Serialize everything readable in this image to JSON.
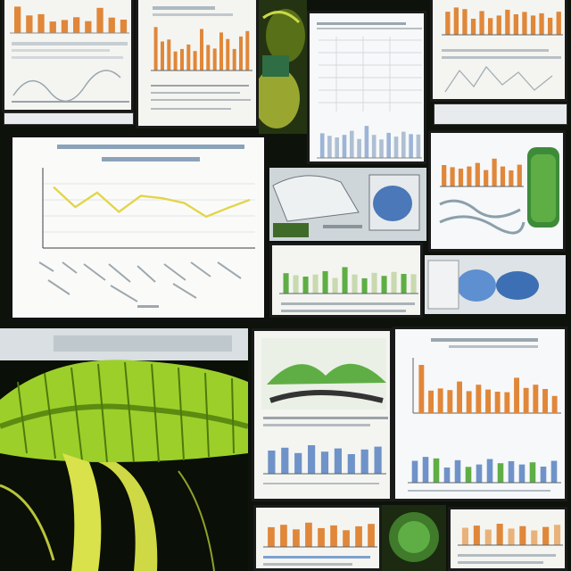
{
  "palette": {
    "background": "#0d120a",
    "paper": "#f4f5f1",
    "orange_bar": "#e0873a",
    "line_yellow": "#e3d54a",
    "leaf_green": "#9ccf2a",
    "stem_yellow": "#d9e24a",
    "grid": "#c9cfd4",
    "blue_bar": "#6f93c9",
    "green_bar": "#5fae45"
  },
  "chart_data": [
    {
      "type": "line",
      "title": "",
      "xlabel": "",
      "ylabel": "",
      "ylim": [
        0,
        10
      ],
      "series": [
        {
          "values": [
            7.6,
            5.1,
            6.9,
            4.5,
            6.5,
            6.2,
            5.6,
            3.9,
            5.0,
            6.0
          ]
        }
      ]
    },
    {
      "type": "bar",
      "title": "",
      "ylim": [
        0,
        10
      ],
      "values": [
        8.7,
        5.8,
        6.2,
        3.8,
        4.3,
        5.2,
        3.9,
        8.3,
        5.1,
        4.4,
        7.6,
        6.3,
        4.3,
        6.8,
        7.9
      ]
    },
    {
      "type": "bar",
      "title": "",
      "ylim": [
        0,
        10
      ],
      "values": [
        6.0,
        5.4,
        5.0,
        5.6,
        6.6,
        4.6,
        7.8,
        5.6,
        4.5,
        6.1,
        5.2,
        6.4,
        5.8,
        5.7
      ]
    },
    {
      "type": "bar",
      "title": "",
      "ylim": [
        0,
        10
      ],
      "values": [
        9.0,
        4.2,
        4.6,
        4.3,
        5.9,
        4.1,
        5.3,
        4.4,
        4.0,
        3.9,
        6.6,
        4.7,
        5.3,
        4.5,
        3.2
      ]
    },
    {
      "type": "bar",
      "title": "",
      "ylim": [
        0,
        10
      ],
      "values": [
        7.2,
        8.5,
        8.0,
        5.0,
        7.4,
        5.2,
        6.0,
        7.8,
        6.4,
        7.1,
        6.0,
        6.7,
        5.3,
        7.2
      ]
    },
    {
      "type": "bar",
      "title": "",
      "ylim": [
        0,
        10
      ],
      "values": [
        6.5,
        7.3,
        5.8,
        8.0,
        6.2,
        7.1,
        5.5,
        6.8,
        7.6
      ]
    }
  ]
}
